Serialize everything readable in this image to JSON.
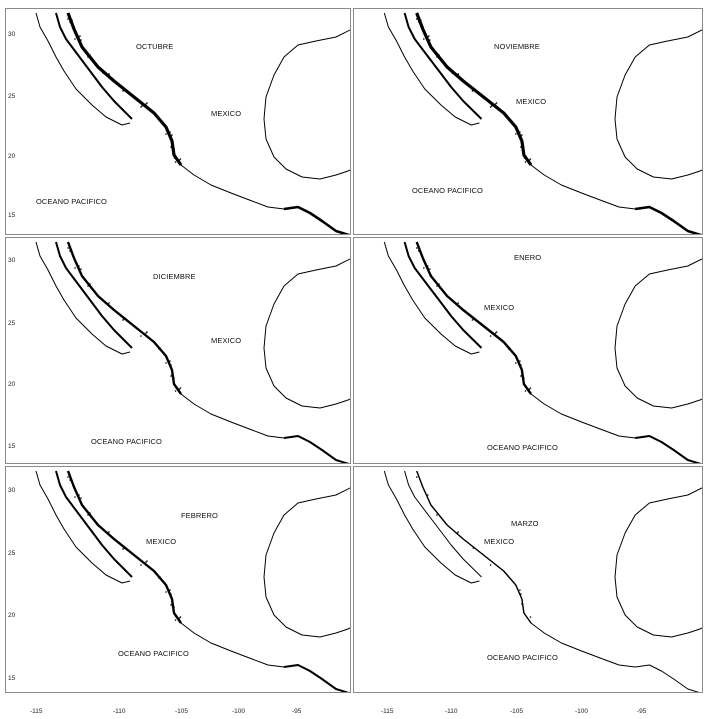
{
  "panels": [
    {
      "month": "OCTUBRE",
      "country": "MEXICO",
      "ocean": "OCEANO PACIFICO",
      "yticks": [
        "30",
        "25",
        "20",
        "15"
      ],
      "coast_density": "high"
    },
    {
      "month": "NOVIEMBRE",
      "country": "MEXICO",
      "ocean": "OCEANO PACIFICO",
      "yticks": [],
      "coast_density": "high"
    },
    {
      "month": "DICIEMBRE",
      "country": "MEXICO",
      "ocean": "OCEANO PACIFICO",
      "yticks": [
        "30",
        "25",
        "20",
        "15"
      ],
      "coast_density": "medium"
    },
    {
      "month": "ENERO",
      "country": "MEXICO",
      "ocean": "OCEANO PACIFICO",
      "yticks": [],
      "coast_density": "medium"
    },
    {
      "month": "FEBRERO",
      "country": "MEXICO",
      "ocean": "OCEANO PACIFICO",
      "yticks": [
        "30",
        "25",
        "20",
        "15"
      ],
      "coast_density": "medium"
    },
    {
      "month": "MARZO",
      "country": "MEXICO",
      "ocean": "OCEANO PACIFICO",
      "yticks": [],
      "coast_density": "low"
    }
  ],
  "x_ticks_left": [
    "-115",
    "-110",
    "-105",
    "-100",
    "-95"
  ],
  "x_ticks_right": [
    "-115",
    "-110",
    "-105",
    "-100",
    "-95"
  ],
  "colors": {
    "coast": "#000000",
    "frame": "#8a8a8a"
  }
}
